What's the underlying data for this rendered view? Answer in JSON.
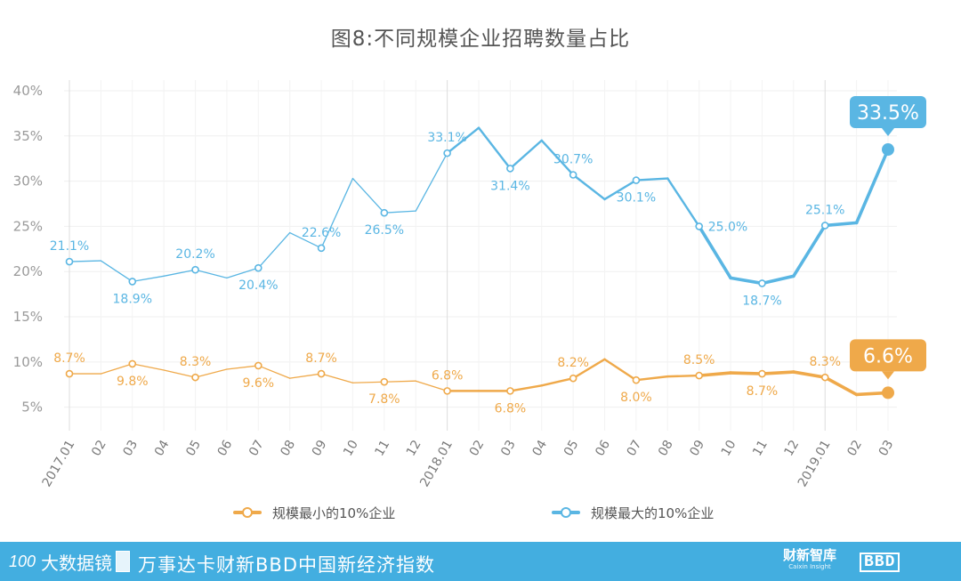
{
  "chart_data": {
    "type": "line",
    "title": "图8:不同规模企业招聘数量占比",
    "xlabel": "",
    "ylabel": "",
    "ylim": [
      3,
      40
    ],
    "y_ticks": [
      "40%",
      "35%",
      "30%",
      "25%",
      "20%",
      "15%",
      "10%",
      "5%"
    ],
    "y_tick_values": [
      40,
      35,
      30,
      25,
      20,
      15,
      10,
      5
    ],
    "categories": [
      "2017.01",
      "02",
      "03",
      "04",
      "05",
      "06",
      "07",
      "08",
      "09",
      "10",
      "11",
      "12",
      "2018.01",
      "02",
      "03",
      "04",
      "05",
      "06",
      "07",
      "08",
      "09",
      "10",
      "11",
      "12",
      "2019.01",
      "02",
      "03"
    ],
    "series": [
      {
        "name": "规模最大的10%企业",
        "color": "#5ab6e3",
        "values": [
          21.1,
          21.2,
          18.9,
          19.5,
          20.2,
          19.3,
          20.4,
          24.3,
          22.6,
          30.3,
          26.5,
          26.7,
          33.1,
          35.9,
          31.4,
          34.5,
          30.7,
          28.0,
          30.1,
          30.3,
          25.0,
          19.3,
          18.7,
          19.5,
          25.1,
          25.4,
          33.5
        ],
        "labels": [
          {
            "i": 0,
            "text": "21.1%",
            "pos": "above"
          },
          {
            "i": 2,
            "text": "18.9%",
            "pos": "below"
          },
          {
            "i": 4,
            "text": "20.2%",
            "pos": "above"
          },
          {
            "i": 6,
            "text": "20.4%",
            "pos": "below"
          },
          {
            "i": 8,
            "text": "22.6%",
            "pos": "above"
          },
          {
            "i": 10,
            "text": "26.5%",
            "pos": "below"
          },
          {
            "i": 12,
            "text": "33.1%",
            "pos": "above"
          },
          {
            "i": 14,
            "text": "31.4%",
            "pos": "below"
          },
          {
            "i": 16,
            "text": "30.7%",
            "pos": "above"
          },
          {
            "i": 18,
            "text": "30.1%",
            "pos": "below"
          },
          {
            "i": 20,
            "text": "25.0%",
            "pos": "right"
          },
          {
            "i": 22,
            "text": "18.7%",
            "pos": "below"
          },
          {
            "i": 24,
            "text": "25.1%",
            "pos": "above"
          }
        ],
        "callout": "33.5%"
      },
      {
        "name": "规模最小的10%企业",
        "color": "#efa94a",
        "values": [
          8.7,
          8.7,
          9.8,
          9.1,
          8.3,
          9.2,
          9.6,
          8.2,
          8.7,
          7.7,
          7.8,
          7.9,
          6.8,
          6.8,
          6.8,
          7.4,
          8.2,
          10.3,
          8.0,
          8.4,
          8.5,
          8.8,
          8.7,
          8.9,
          8.3,
          6.4,
          6.6
        ],
        "labels": [
          {
            "i": 0,
            "text": "8.7%",
            "pos": "above"
          },
          {
            "i": 2,
            "text": "9.8%",
            "pos": "below"
          },
          {
            "i": 4,
            "text": "8.3%",
            "pos": "above"
          },
          {
            "i": 6,
            "text": "9.6%",
            "pos": "below"
          },
          {
            "i": 8,
            "text": "8.7%",
            "pos": "above"
          },
          {
            "i": 10,
            "text": "7.8%",
            "pos": "below"
          },
          {
            "i": 12,
            "text": "6.8%",
            "pos": "above"
          },
          {
            "i": 14,
            "text": "6.8%",
            "pos": "below"
          },
          {
            "i": 16,
            "text": "8.2%",
            "pos": "above"
          },
          {
            "i": 18,
            "text": "8.0%",
            "pos": "below"
          },
          {
            "i": 20,
            "text": "8.5%",
            "pos": "above"
          },
          {
            "i": 22,
            "text": "8.7%",
            "pos": "below"
          },
          {
            "i": 24,
            "text": "8.3%",
            "pos": "above"
          }
        ],
        "callout": "6.6%"
      }
    ],
    "legend": [
      {
        "label": "规模最小的10%企业",
        "color": "#efa94a"
      },
      {
        "label": "规模最大的10%企业",
        "color": "#5ab6e3"
      }
    ],
    "legend_position": "bottom-center",
    "grid": true
  },
  "footer": {
    "logo_text": "大数据镜",
    "logo_mark": "100",
    "title": "万事达卡财新BBD中国新经济指数",
    "brand_cn": "财新智库",
    "brand_en": "Caixin Insight",
    "brand_bbd": "BBD"
  }
}
